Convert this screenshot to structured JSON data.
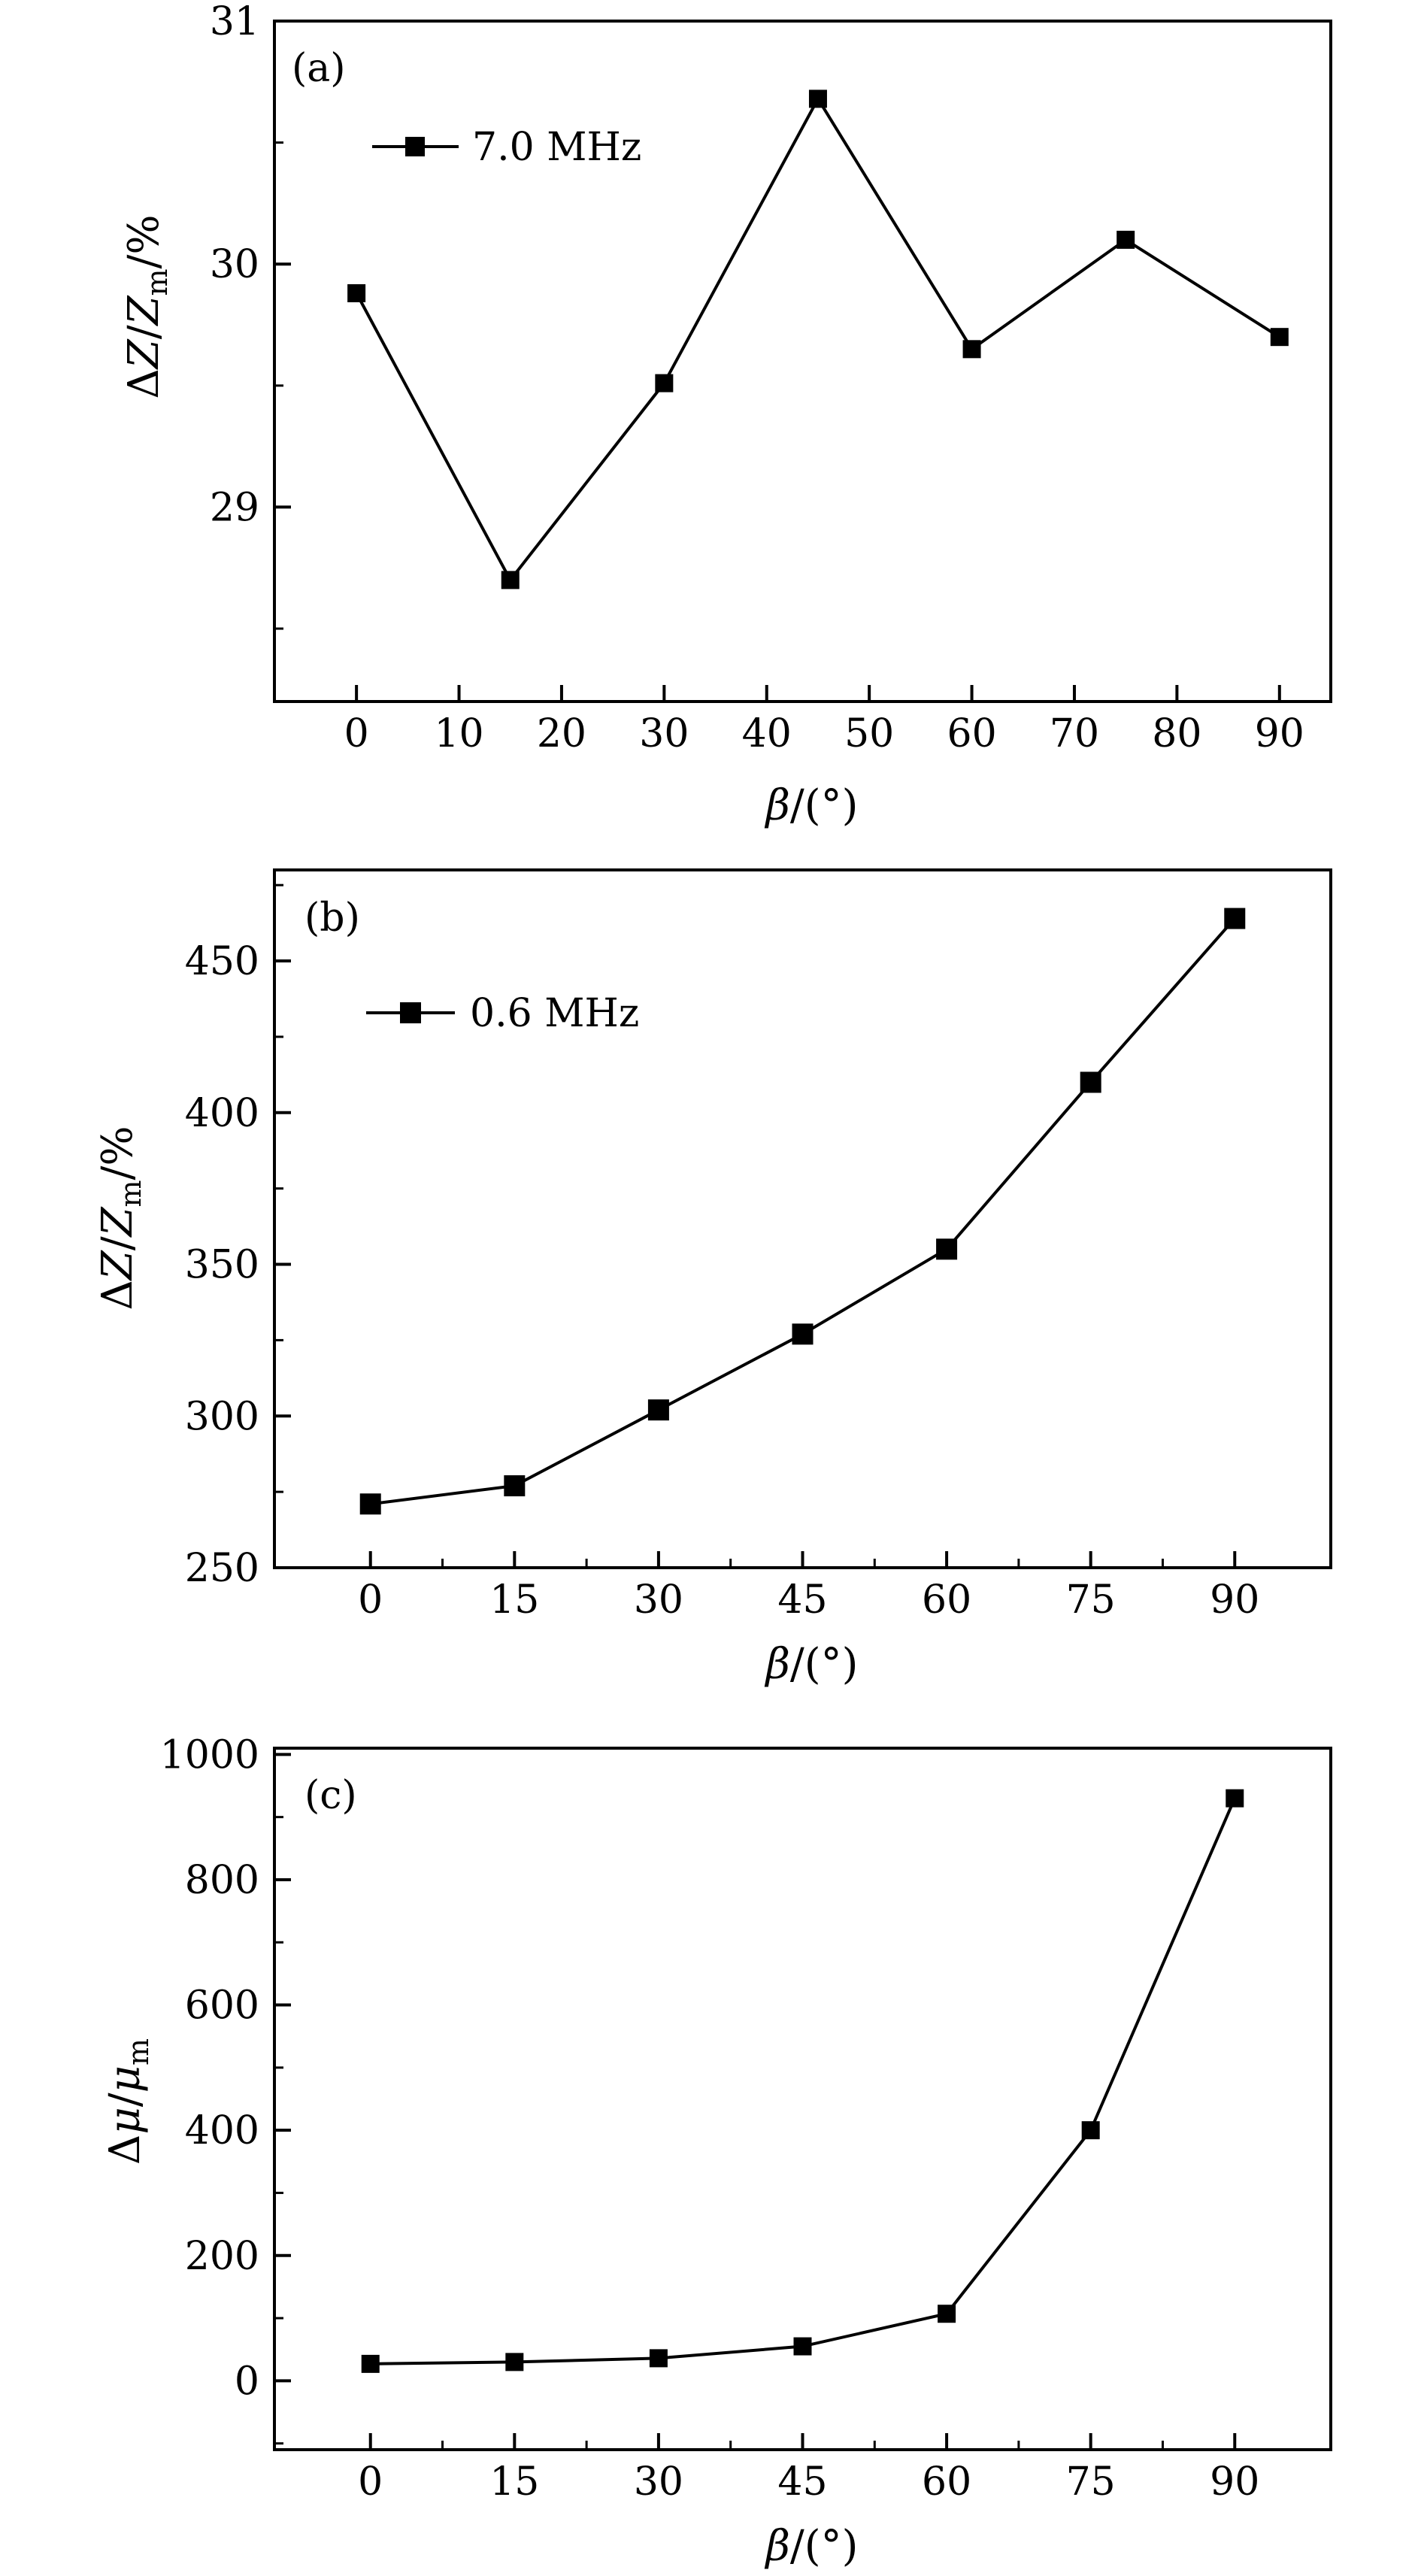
{
  "chart_data": [
    {
      "type": "line",
      "panel_label": "(a)",
      "xlabel": "β/(°)",
      "ylabel": "ΔZ/Z_m/%",
      "xlim": [
        -8,
        95
      ],
      "ylim": [
        28.2,
        31
      ],
      "x_ticks": [
        0,
        10,
        20,
        30,
        40,
        50,
        60,
        70,
        80,
        90
      ],
      "x_tick_labels": [
        "0",
        "10",
        "20",
        "30",
        "40",
        "50",
        "60",
        "70",
        "80",
        "90"
      ],
      "y_ticks": [
        29,
        30,
        31
      ],
      "y_tick_labels": [
        "29",
        "30",
        "31"
      ],
      "legend_position": "top-left",
      "grid": false,
      "series": [
        {
          "name": "7.0 MHz",
          "marker": "square",
          "color": "#000000",
          "x": [
            0,
            15,
            30,
            45,
            60,
            75,
            90
          ],
          "y": [
            29.88,
            28.7,
            29.51,
            30.68,
            29.65,
            30.1,
            29.7
          ]
        }
      ]
    },
    {
      "type": "line",
      "panel_label": "(b)",
      "xlabel": "β/(°)",
      "ylabel": "ΔZ/Z_m/%",
      "xlim": [
        -10,
        100
      ],
      "ylim": [
        250,
        480
      ],
      "x_ticks": [
        0,
        15,
        30,
        45,
        60,
        75,
        90
      ],
      "x_tick_labels": [
        "0",
        "15",
        "30",
        "45",
        "60",
        "75",
        "90"
      ],
      "y_ticks": [
        250,
        300,
        350,
        400,
        450
      ],
      "y_tick_labels": [
        "250",
        "300",
        "350",
        "400",
        "450"
      ],
      "legend_position": "top-left",
      "grid": false,
      "series": [
        {
          "name": "0.6 MHz",
          "marker": "square",
          "color": "#000000",
          "x": [
            0,
            15,
            30,
            45,
            60,
            75,
            90
          ],
          "y": [
            271,
            277,
            302,
            327,
            355,
            410,
            464
          ]
        }
      ]
    },
    {
      "type": "line",
      "panel_label": "(c)",
      "xlabel": "β/(°)",
      "ylabel": "Δμ/μ_m",
      "xlim": [
        -10,
        100
      ],
      "ylim": [
        -110,
        1010
      ],
      "x_ticks": [
        0,
        15,
        30,
        45,
        60,
        75,
        90
      ],
      "x_tick_labels": [
        "0",
        "15",
        "30",
        "45",
        "60",
        "75",
        "90"
      ],
      "y_ticks": [
        0,
        200,
        400,
        600,
        800,
        1000
      ],
      "y_tick_labels": [
        "0",
        "200",
        "400",
        "600",
        "800",
        "1000"
      ],
      "grid": false,
      "series": [
        {
          "marker": "square",
          "color": "#000000",
          "x": [
            0,
            15,
            30,
            45,
            60,
            75,
            90
          ],
          "y": [
            27,
            30,
            36,
            55,
            107,
            400,
            930
          ]
        }
      ]
    }
  ]
}
